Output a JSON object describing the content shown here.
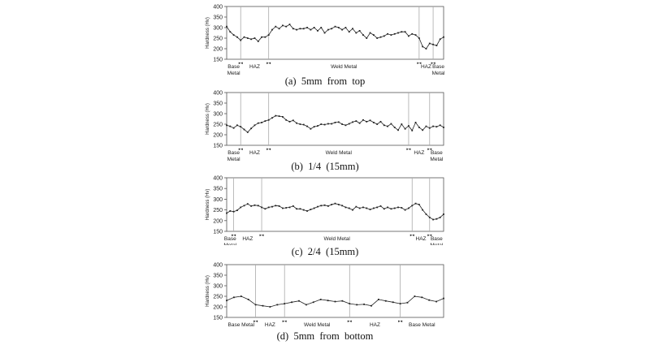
{
  "chart_data": [
    {
      "type": "line",
      "caption": "(a)  5mm  from  top",
      "ylabel": "Hardness (Hv)",
      "ylim": [
        150,
        400
      ],
      "yticks": [
        "150",
        "200",
        "250",
        "300",
        "350",
        "400"
      ],
      "grid": false,
      "x": [
        0,
        1,
        2,
        3,
        4,
        5,
        6,
        7,
        8,
        9,
        10,
        11,
        12,
        13,
        14,
        15,
        16,
        17,
        18,
        19,
        20,
        21,
        22,
        23,
        24,
        25,
        26,
        27,
        28,
        29,
        30,
        31,
        32,
        33,
        34,
        35,
        36,
        37,
        38,
        39,
        40,
        41,
        42,
        43,
        44,
        45,
        46,
        47,
        48,
        49,
        50,
        51,
        52,
        53,
        54,
        55,
        56,
        57,
        58,
        59,
        60,
        61,
        62
      ],
      "series": [
        {
          "values": [
            305,
            280,
            265,
            255,
            240,
            255,
            250,
            245,
            250,
            235,
            255,
            255,
            265,
            290,
            305,
            295,
            310,
            305,
            315,
            295,
            290,
            295,
            295,
            300,
            290,
            300,
            285,
            300,
            275,
            290,
            295,
            305,
            300,
            290,
            300,
            280,
            295,
            275,
            285,
            265,
            250,
            275,
            265,
            250,
            255,
            260,
            270,
            265,
            270,
            275,
            280,
            280,
            260,
            270,
            265,
            250,
            210,
            200,
            225,
            220,
            215,
            245,
            255
          ]
        }
      ],
      "regions": [
        {
          "label": "Base\nMetal",
          "from": 0,
          "to": 4
        },
        {
          "label": "HAZ",
          "from": 4,
          "to": 12
        },
        {
          "label": "Weld Metal",
          "from": 12,
          "to": 55
        },
        {
          "label": "HAZ",
          "from": 55,
          "to": 59
        },
        {
          "label": "Base\nMetal",
          "from": 59,
          "to": 62
        }
      ]
    },
    {
      "type": "line",
      "caption": "(b)  1/4  (15mm)",
      "ylabel": "Hardness (Hv)",
      "ylim": [
        150,
        400
      ],
      "yticks": [
        "150",
        "200",
        "250",
        "300",
        "350",
        "400"
      ],
      "grid": false,
      "x": [
        0,
        1,
        2,
        3,
        4,
        5,
        6,
        7,
        8,
        9,
        10,
        11,
        12,
        13,
        14,
        15,
        16,
        17,
        18,
        19,
        20,
        21,
        22,
        23,
        24,
        25,
        26,
        27,
        28,
        29,
        30,
        31,
        32,
        33,
        34,
        35,
        36,
        37,
        38,
        39,
        40,
        41,
        42,
        43,
        44,
        45,
        46,
        47,
        48,
        49,
        50,
        51,
        52,
        53,
        54,
        55,
        56,
        57,
        58,
        59,
        60,
        61,
        62
      ],
      "series": [
        {
          "values": [
            245,
            240,
            232,
            245,
            238,
            225,
            212,
            230,
            245,
            255,
            258,
            265,
            270,
            280,
            290,
            288,
            285,
            270,
            262,
            268,
            255,
            250,
            248,
            240,
            228,
            238,
            242,
            250,
            248,
            252,
            252,
            258,
            260,
            250,
            245,
            252,
            260,
            265,
            255,
            270,
            262,
            268,
            258,
            250,
            262,
            245,
            240,
            252,
            235,
            222,
            250,
            228,
            242,
            220,
            258,
            235,
            222,
            240,
            232,
            240,
            238,
            245,
            235
          ]
        }
      ],
      "regions": [
        {
          "label": "Base\nMetal",
          "from": 0,
          "to": 4
        },
        {
          "label": "HAZ",
          "from": 4,
          "to": 12
        },
        {
          "label": "Weld Metal",
          "from": 12,
          "to": 52
        },
        {
          "label": "HAZ",
          "from": 52,
          "to": 58
        },
        {
          "label": "Base\nMetal",
          "from": 58,
          "to": 62
        }
      ]
    },
    {
      "type": "line",
      "caption": "(c)  2/4  (15mm)",
      "ylabel": "Hardness (Hv)",
      "ylim": [
        150,
        400
      ],
      "yticks": [
        "150",
        "200",
        "250",
        "300",
        "350",
        "400"
      ],
      "grid": false,
      "x": [
        0,
        1,
        2,
        3,
        4,
        5,
        6,
        7,
        8,
        9,
        10,
        11,
        12,
        13,
        14,
        15,
        16,
        17,
        18,
        19,
        20,
        21,
        22,
        23,
        24,
        25,
        26,
        27,
        28,
        29,
        30,
        31,
        32,
        33,
        34,
        35,
        36,
        37,
        38,
        39,
        40,
        41,
        42,
        43,
        44,
        45,
        46,
        47,
        48,
        49,
        50,
        51,
        52,
        53,
        54,
        55,
        56,
        57,
        58,
        59,
        60,
        61,
        62
      ],
      "series": [
        {
          "values": [
            235,
            245,
            242,
            248,
            262,
            270,
            278,
            268,
            272,
            270,
            262,
            255,
            262,
            265,
            270,
            268,
            258,
            260,
            262,
            268,
            255,
            255,
            250,
            245,
            252,
            258,
            265,
            270,
            272,
            268,
            275,
            280,
            275,
            270,
            262,
            258,
            250,
            265,
            258,
            262,
            258,
            252,
            258,
            262,
            268,
            255,
            262,
            255,
            258,
            262,
            260,
            250,
            258,
            270,
            280,
            275,
            250,
            230,
            215,
            205,
            208,
            215,
            230
          ]
        }
      ],
      "regions": [
        {
          "label": "Base\nMetal",
          "from": 0,
          "to": 2
        },
        {
          "label": "HAZ",
          "from": 2,
          "to": 10
        },
        {
          "label": "Weld Metal",
          "from": 10,
          "to": 53
        },
        {
          "label": "HAZ",
          "from": 53,
          "to": 58
        },
        {
          "label": "Base\nMetal",
          "from": 58,
          "to": 62
        }
      ]
    },
    {
      "type": "line",
      "caption": "(d)  5mm  from  bottom",
      "ylabel": "Hardness (Hv)",
      "ylim": [
        150,
        400
      ],
      "yticks": [
        "150",
        "200",
        "250",
        "300",
        "350",
        "400"
      ],
      "grid": false,
      "x": [
        0,
        1,
        2,
        3,
        4,
        5,
        6,
        7,
        8,
        9,
        10,
        11,
        12,
        13,
        14,
        15,
        16,
        17,
        18,
        19,
        20,
        21,
        22,
        23,
        24,
        25,
        26,
        27,
        28,
        29,
        30
      ],
      "series": [
        {
          "values": [
            230,
            245,
            250,
            235,
            210,
            205,
            200,
            210,
            215,
            222,
            228,
            210,
            222,
            235,
            230,
            225,
            228,
            215,
            210,
            212,
            205,
            235,
            228,
            222,
            215,
            220,
            250,
            245,
            232,
            225,
            240
          ]
        }
      ],
      "regions": [
        {
          "label": "Base  Metal",
          "from": 0,
          "to": 4
        },
        {
          "label": "HAZ",
          "from": 4,
          "to": 8
        },
        {
          "label": "Weld  Metal",
          "from": 8,
          "to": 17
        },
        {
          "label": "HAZ",
          "from": 17,
          "to": 24
        },
        {
          "label": "Base  Metal",
          "from": 24,
          "to": 30
        }
      ]
    }
  ]
}
